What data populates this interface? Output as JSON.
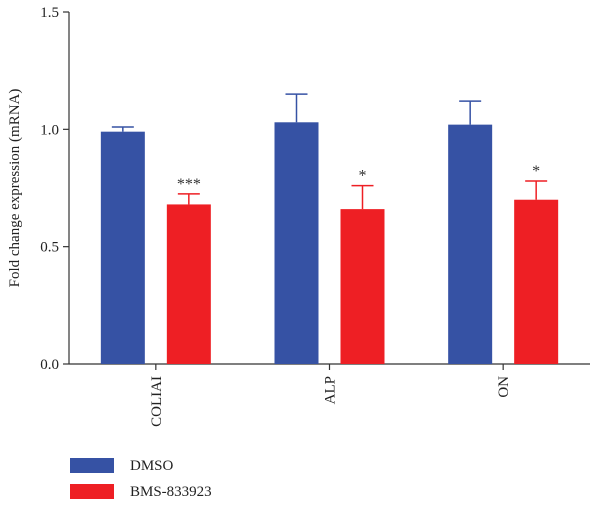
{
  "chart_data": {
    "type": "bar",
    "ylabel": "Fold change expression (mRNA)",
    "xlabel": "",
    "ylim": [
      0,
      1.5
    ],
    "yticks": [
      "0.0",
      "0.5",
      "1.0",
      "1.5"
    ],
    "categories": [
      "COLIAI",
      "ALP",
      "ON"
    ],
    "series": [
      {
        "name": "DMSO",
        "color": "#3652a4",
        "values": [
          0.99,
          1.03,
          1.02
        ],
        "errors": [
          0.02,
          0.12,
          0.1
        ]
      },
      {
        "name": "BMS-833923",
        "color": "#ee1f24",
        "values": [
          0.68,
          0.66,
          0.7
        ],
        "errors": [
          0.045,
          0.1,
          0.08
        ]
      }
    ],
    "significance": [
      "***",
      "*",
      "*"
    ],
    "legend_position": "bottom-left",
    "grid": false
  }
}
